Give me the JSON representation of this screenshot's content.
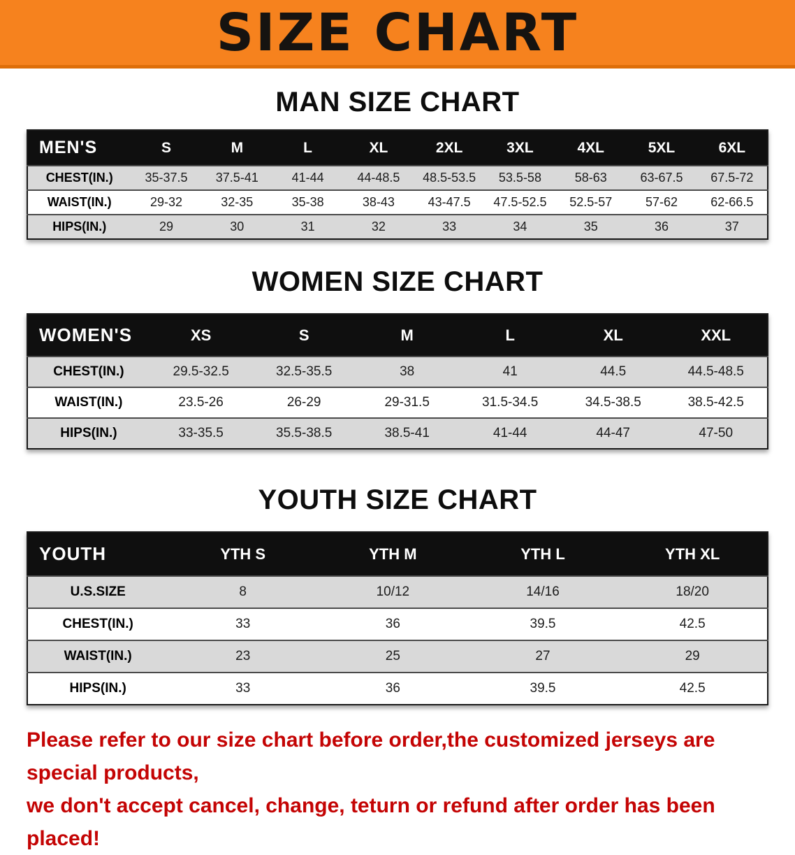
{
  "banner": {
    "title": "SIZE CHART"
  },
  "colors": {
    "banner_bg": "#F6821E",
    "table_header_bg": "#0F0F0F",
    "row_alt_bg": "#D9D9D9",
    "disclaimer_red": "#C40404"
  },
  "chart_data": [
    {
      "type": "table",
      "title": "MAN SIZE CHART",
      "columns": [
        "MEN'S",
        "S",
        "M",
        "L",
        "XL",
        "2XL",
        "3XL",
        "4XL",
        "5XL",
        "6XL"
      ],
      "rows": [
        {
          "label": "CHEST(IN.)",
          "values": [
            "35-37.5",
            "37.5-41",
            "41-44",
            "44-48.5",
            "48.5-53.5",
            "53.5-58",
            "58-63",
            "63-67.5",
            "67.5-72"
          ]
        },
        {
          "label": "WAIST(IN.)",
          "values": [
            "29-32",
            "32-35",
            "35-38",
            "38-43",
            "43-47.5",
            "47.5-52.5",
            "52.5-57",
            "57-62",
            "62-66.5"
          ]
        },
        {
          "label": "HIPS(IN.)",
          "values": [
            "29",
            "30",
            "31",
            "32",
            "33",
            "34",
            "35",
            "36",
            "37"
          ]
        }
      ]
    },
    {
      "type": "table",
      "title": "WOMEN SIZE CHART",
      "columns": [
        "WOMEN'S",
        "XS",
        "S",
        "M",
        "L",
        "XL",
        "XXL"
      ],
      "rows": [
        {
          "label": "CHEST(IN.)",
          "values": [
            "29.5-32.5",
            "32.5-35.5",
            "38",
            "41",
            "44.5",
            "44.5-48.5"
          ]
        },
        {
          "label": "WAIST(IN.)",
          "values": [
            "23.5-26",
            "26-29",
            "29-31.5",
            "31.5-34.5",
            "34.5-38.5",
            "38.5-42.5"
          ]
        },
        {
          "label": "HIPS(IN.)",
          "values": [
            "33-35.5",
            "35.5-38.5",
            "38.5-41",
            "41-44",
            "44-47",
            "47-50"
          ]
        }
      ]
    },
    {
      "type": "table",
      "title": "YOUTH SIZE CHART",
      "columns": [
        "YOUTH",
        "YTH S",
        "YTH M",
        "YTH L",
        "YTH XL"
      ],
      "rows": [
        {
          "label": "U.S.SIZE",
          "values": [
            "8",
            "10/12",
            "14/16",
            "18/20"
          ]
        },
        {
          "label": "CHEST(IN.)",
          "values": [
            "33",
            "36",
            "39.5",
            "42.5"
          ]
        },
        {
          "label": "WAIST(IN.)",
          "values": [
            "23",
            "25",
            "27",
            "29"
          ]
        },
        {
          "label": "HIPS(IN.)",
          "values": [
            "33",
            "36",
            "39.5",
            "42.5"
          ]
        }
      ]
    }
  ],
  "footer": {
    "line1": "Please refer to our size chart before order,the customized jerseys are special products,",
    "line2": "we don't accept cancel, change, teturn or refund after order has been placed!"
  }
}
